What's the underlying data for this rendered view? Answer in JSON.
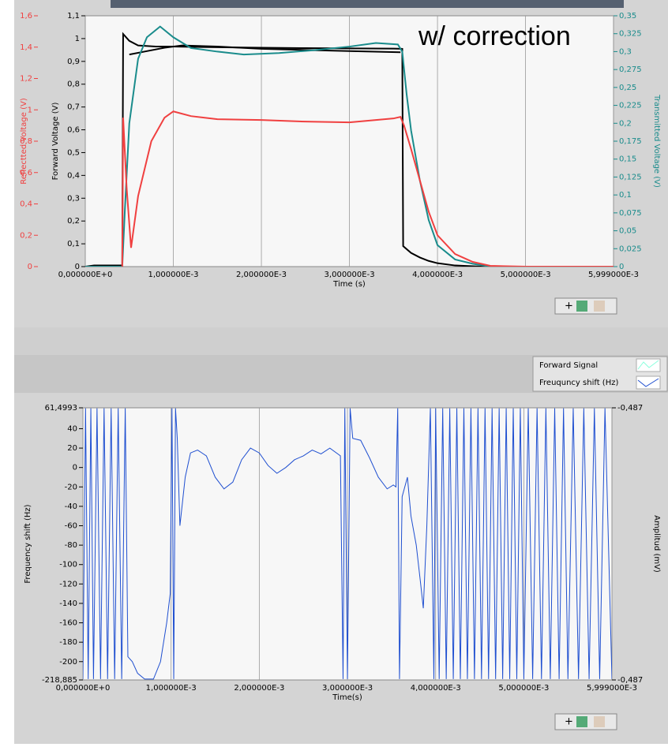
{
  "annotation": "w/ correction",
  "legend": [
    {
      "name": "Forward Signal"
    },
    {
      "name": "Freuquncy shift (Hz)"
    }
  ],
  "chart_data": [
    {
      "type": "line",
      "xlabel": "Time (s)",
      "ylabel": "Forward Voltage (V)",
      "y2label": "Transmitted Voltage (V)",
      "y3label": "Reflectted Voltage (V)",
      "grid": "x",
      "xlim": [
        0,
        0.005999
      ],
      "xticks": [
        {
          "value": 0,
          "label": "0,000000E+0"
        },
        {
          "value": 0.001,
          "label": "1,000000E-3"
        },
        {
          "value": 0.002,
          "label": "2,000000E-3"
        },
        {
          "value": 0.003,
          "label": "3,000000E-3"
        },
        {
          "value": 0.004,
          "label": "4,000000E-3"
        },
        {
          "value": 0.005,
          "label": "5,000000E-3"
        },
        {
          "value": 0.005999,
          "label": "5,999000E-3"
        }
      ],
      "ylim": [
        0,
        1.1
      ],
      "yticks": [
        0,
        {
          "value": 0.1,
          "label": "0,1"
        },
        {
          "value": 0.2,
          "label": "0,2"
        },
        {
          "value": 0.3,
          "label": "0,3"
        },
        {
          "value": 0.4,
          "label": "0,4"
        },
        {
          "value": 0.5,
          "label": "0,5"
        },
        {
          "value": 0.6,
          "label": "0,6"
        },
        {
          "value": 0.7,
          "label": "0,7"
        },
        {
          "value": 0.8,
          "label": "0,8"
        },
        {
          "value": 0.9,
          "label": "0,9"
        },
        1,
        {
          "value": 1.1,
          "label": "1,1"
        }
      ],
      "y3lim": [
        0,
        1.6
      ],
      "y3ticks": [
        0,
        {
          "value": 0.2,
          "label": "0,2"
        },
        {
          "value": 0.4,
          "label": "0,4"
        },
        {
          "value": 0.6,
          "label": "0,6"
        },
        {
          "value": 0.8,
          "label": "0,8"
        },
        1,
        {
          "value": 1.2,
          "label": "1,2"
        },
        {
          "value": 1.4,
          "label": "1,4"
        },
        {
          "value": 1.6,
          "label": "1,6"
        }
      ],
      "y2lim": [
        0,
        0.35
      ],
      "y2ticks": [
        0,
        {
          "value": 0.025,
          "label": "0,025"
        },
        {
          "value": 0.05,
          "label": "0,05"
        },
        {
          "value": 0.075,
          "label": "0,075"
        },
        {
          "value": 0.1,
          "label": "0,1"
        },
        {
          "value": 0.125,
          "label": "0,125"
        },
        {
          "value": 0.15,
          "label": "0,15"
        },
        {
          "value": 0.175,
          "label": "0,175"
        },
        {
          "value": 0.2,
          "label": "0,2"
        },
        {
          "value": 0.225,
          "label": "0,225"
        },
        {
          "value": 0.25,
          "label": "0,25"
        },
        {
          "value": 0.275,
          "label": "0,275"
        },
        {
          "value": 0.3,
          "label": "0,3"
        },
        {
          "value": 0.325,
          "label": "0,325"
        },
        {
          "value": 0.35,
          "label": "0,35"
        }
      ],
      "series": [
        {
          "color": "#000000",
          "axis": "y",
          "x": [
            0,
            0.0001,
            0.0002,
            0.0003,
            0.00042,
            0.00043,
            0.0005,
            0.0006,
            0.0008,
            0.001,
            0.0015,
            0.002,
            0.0025,
            0.003,
            0.0035,
            0.0036,
            0.00361,
            0.0037,
            0.0038,
            0.0039,
            0.004,
            0.0042,
            0.0045,
            0.005,
            0.005999
          ],
          "values": [
            0,
            0.005,
            0.005,
            0.005,
            0.005,
            1.02,
            0.99,
            0.97,
            0.965,
            0.965,
            0.962,
            0.96,
            0.958,
            0.957,
            0.956,
            0.955,
            0.09,
            0.06,
            0.04,
            0.025,
            0.015,
            0.005,
            0,
            0,
            0
          ]
        },
        {
          "color": "#000000",
          "axis": "y",
          "x": [
            0.0005,
            0.0007,
            0.0009,
            0.0011,
            0.0015,
            0.002,
            0.0025,
            0.003,
            0.00358
          ],
          "values": [
            0.93,
            0.945,
            0.96,
            0.97,
            0.965,
            0.955,
            0.95,
            0.945,
            0.94
          ]
        },
        {
          "color": "#1a8c8c",
          "axis": "y2",
          "x": [
            0,
            0.00042,
            0.00045,
            0.0005,
            0.0006,
            0.0007,
            0.00085,
            0.001,
            0.0012,
            0.0015,
            0.0018,
            0.0022,
            0.0026,
            0.003,
            0.0033,
            0.00355,
            0.0036,
            0.00365,
            0.0037,
            0.0038,
            0.0039,
            0.004,
            0.0042,
            0.0044,
            0.0046,
            0.005,
            0.005999
          ],
          "values": [
            0,
            0,
            0.08,
            0.2,
            0.29,
            0.32,
            0.335,
            0.32,
            0.305,
            0.3,
            0.296,
            0.298,
            0.302,
            0.307,
            0.312,
            0.31,
            0.3,
            0.24,
            0.19,
            0.12,
            0.065,
            0.03,
            0.01,
            0.004,
            0,
            0,
            0
          ]
        },
        {
          "color": "#f04040",
          "axis": "y3",
          "x": [
            0.00042,
            0.00043,
            0.00047,
            0.00052,
            0.0006,
            0.00075,
            0.0009,
            0.001,
            0.0012,
            0.0015,
            0.002,
            0.0025,
            0.003,
            0.0035,
            0.00358,
            0.00362,
            0.0037,
            0.0038,
            0.0039,
            0.004,
            0.0042,
            0.0044,
            0.0046,
            0.005,
            0.005999
          ],
          "values": [
            0,
            0.95,
            0.5,
            0.12,
            0.45,
            0.8,
            0.95,
            0.99,
            0.96,
            0.94,
            0.935,
            0.925,
            0.92,
            0.945,
            0.955,
            0.9,
            0.75,
            0.55,
            0.35,
            0.2,
            0.08,
            0.03,
            0.005,
            0,
            0
          ]
        }
      ]
    },
    {
      "type": "line",
      "xlabel": "Time(s)",
      "ylabel": "Frequency shift (Hz)",
      "y2label": "Amplitud (mV)",
      "grid": "x",
      "xlim": [
        0,
        0.005999
      ],
      "xticks": [
        {
          "value": 0,
          "label": "0,000000E+0"
        },
        {
          "value": 0.001,
          "label": "1,000000E-3"
        },
        {
          "value": 0.002,
          "label": "2,000000E-3"
        },
        {
          "value": 0.003,
          "label": "3,000000E-3"
        },
        {
          "value": 0.004,
          "label": "4,000000E-3"
        },
        {
          "value": 0.005,
          "label": "5,000000E-3"
        },
        {
          "value": 0.005999,
          "label": "5,999000E-3"
        }
      ],
      "ylim": [
        -218.885,
        61.4993
      ],
      "yticks": [
        {
          "value": 61.4993,
          "label": "61,4993"
        },
        40,
        20,
        0,
        -20,
        -40,
        -60,
        -80,
        -100,
        -120,
        -140,
        -160,
        -180,
        -200,
        {
          "value": -218.885,
          "label": "-218,885"
        }
      ],
      "y2lim": [
        -0.4875,
        -0.4865
      ],
      "y2ticks": [
        {
          "value": -0.4865,
          "label": "-0,487"
        },
        {
          "value": -0.4875,
          "label": "-0,487"
        }
      ],
      "series": [
        {
          "color": "#1f4fd0",
          "axis": "y",
          "x": [
            0,
            3e-05,
            6e-05,
            9e-05,
            0.00012,
            0.00016,
            0.0002,
            0.00024,
            0.00028,
            0.00032,
            0.00036,
            0.0004,
            0.00044,
            0.00048,
            0.00051,
            0.00056,
            0.00062,
            0.0007,
            0.0008,
            0.00088,
            0.00095,
            0.00099,
            0.00101,
            0.00103,
            0.00105,
            0.00107,
            0.0011,
            0.00116,
            0.00122,
            0.0013,
            0.0014,
            0.0015,
            0.0016,
            0.0017,
            0.0018,
            0.0019,
            0.002,
            0.0021,
            0.0022,
            0.0023,
            0.0024,
            0.0025,
            0.0026,
            0.0027,
            0.0028,
            0.00292,
            0.00295,
            0.00297,
            0.003,
            0.00303,
            0.00306,
            0.00315,
            0.00325,
            0.00335,
            0.00345,
            0.00352,
            0.00355,
            0.00357,
            0.00359,
            0.00362,
            0.00368,
            0.00372,
            0.00378,
            0.00383,
            0.00386,
            0.0039,
            0.00394,
            0.00398,
            0.004,
            0.00404,
            0.00408,
            0.00412,
            0.00416,
            0.0042,
            0.00424,
            0.00428,
            0.00432,
            0.00436,
            0.0044,
            0.00444,
            0.00448,
            0.00452,
            0.00456,
            0.0046,
            0.00464,
            0.00468,
            0.00472,
            0.00476,
            0.0048,
            0.00484,
            0.00488,
            0.00492,
            0.00496,
            0.005,
            0.00505,
            0.0051,
            0.00515,
            0.0052,
            0.00525,
            0.0053,
            0.00535,
            0.0054,
            0.00545,
            0.0055,
            0.00556,
            0.00562,
            0.00568,
            0.00574,
            0.0058,
            0.00586,
            0.00592,
            0.005999
          ],
          "values": [
            -218,
            61,
            -218,
            61,
            -218,
            61,
            -218,
            61,
            -218,
            61,
            -218,
            61,
            -218,
            61,
            -195,
            -200,
            -212,
            -218,
            -218,
            -200,
            -160,
            -130,
            61,
            -218,
            61,
            30,
            -60,
            -10,
            15,
            18,
            12,
            -10,
            -22,
            -15,
            8,
            20,
            15,
            2,
            -6,
            0,
            8,
            12,
            18,
            14,
            20,
            12,
            -218,
            61,
            -218,
            61,
            30,
            28,
            10,
            -10,
            -22,
            -18,
            -20,
            61,
            -218,
            -30,
            -10,
            -50,
            -80,
            -120,
            -145,
            -60,
            61,
            -218,
            61,
            -218,
            61,
            -218,
            61,
            -218,
            61,
            -218,
            61,
            -218,
            61,
            -218,
            61,
            -218,
            61,
            -218,
            61,
            -218,
            61,
            -218,
            61,
            -218,
            61,
            -218,
            61,
            -218,
            61,
            -218,
            61,
            -218,
            61,
            -218,
            61,
            -218,
            61,
            -218,
            61,
            -218,
            61,
            -218,
            61,
            -218,
            61,
            -218
          ]
        }
      ]
    }
  ]
}
